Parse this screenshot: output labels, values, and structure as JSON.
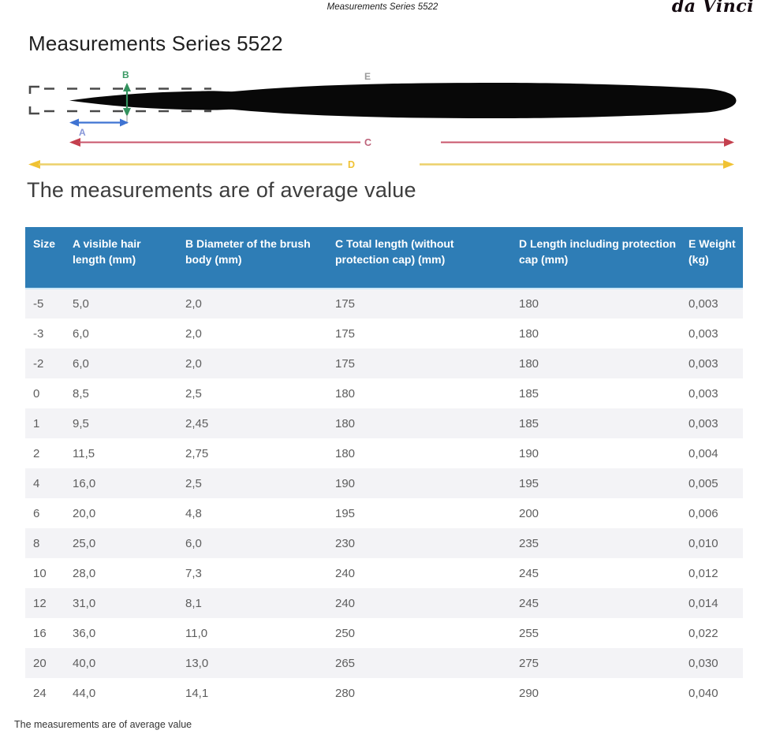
{
  "page": {
    "top_center_title": "Measurements Series 5522",
    "brand": "da Vinci",
    "heading": "Measurements Series 5522",
    "subheading": "The measurements are of average value",
    "footer_note": "The measurements are of average value"
  },
  "diagram": {
    "labels": {
      "a": "A",
      "b": "B",
      "c": "C",
      "d": "D",
      "e": "E"
    },
    "colors": {
      "a_arrow": "#3f73d2",
      "a_label": "#8696d8",
      "b_green": "#33915d",
      "c_red_line": "#c9556b",
      "c_red_arrow": "#c4404e",
      "d_yellow_line": "#ecd06a",
      "d_yellow_accent": "#f0c233",
      "brush": "#080808",
      "cap_dash": "#4a4a4a",
      "e_label": "#9a9a9a"
    }
  },
  "table": {
    "header_bg": "#2e7db6",
    "stripe_bg": "#f3f3f6",
    "columns": [
      "Size",
      "A visible hair length (mm)",
      "B Diameter of the brush body (mm)",
      "C Total length (without protection cap) (mm)",
      "D Length including protection cap (mm)",
      "E Weight (kg)"
    ],
    "rows": [
      [
        "-5",
        "5,0",
        "2,0",
        "175",
        "180",
        "0,003"
      ],
      [
        "-3",
        "6,0",
        "2,0",
        "175",
        "180",
        "0,003"
      ],
      [
        "-2",
        "6,0",
        "2,0",
        "175",
        "180",
        "0,003"
      ],
      [
        "0",
        "8,5",
        "2,5",
        "180",
        "185",
        "0,003"
      ],
      [
        "1",
        "9,5",
        "2,45",
        "180",
        "185",
        "0,003"
      ],
      [
        "2",
        "11,5",
        "2,75",
        "180",
        "190",
        "0,004"
      ],
      [
        "4",
        "16,0",
        "2,5",
        "190",
        "195",
        "0,005"
      ],
      [
        "6",
        "20,0",
        "4,8",
        "195",
        "200",
        "0,006"
      ],
      [
        "8",
        "25,0",
        "6,0",
        "230",
        "235",
        "0,010"
      ],
      [
        "10",
        "28,0",
        "7,3",
        "240",
        "245",
        "0,012"
      ],
      [
        "12",
        "31,0",
        "8,1",
        "240",
        "245",
        "0,014"
      ],
      [
        "16",
        "36,0",
        "11,0",
        "250",
        "255",
        "0,022"
      ],
      [
        "20",
        "40,0",
        "13,0",
        "265",
        "275",
        "0,030"
      ],
      [
        "24",
        "44,0",
        "14,1",
        "280",
        "290",
        "0,040"
      ]
    ]
  }
}
